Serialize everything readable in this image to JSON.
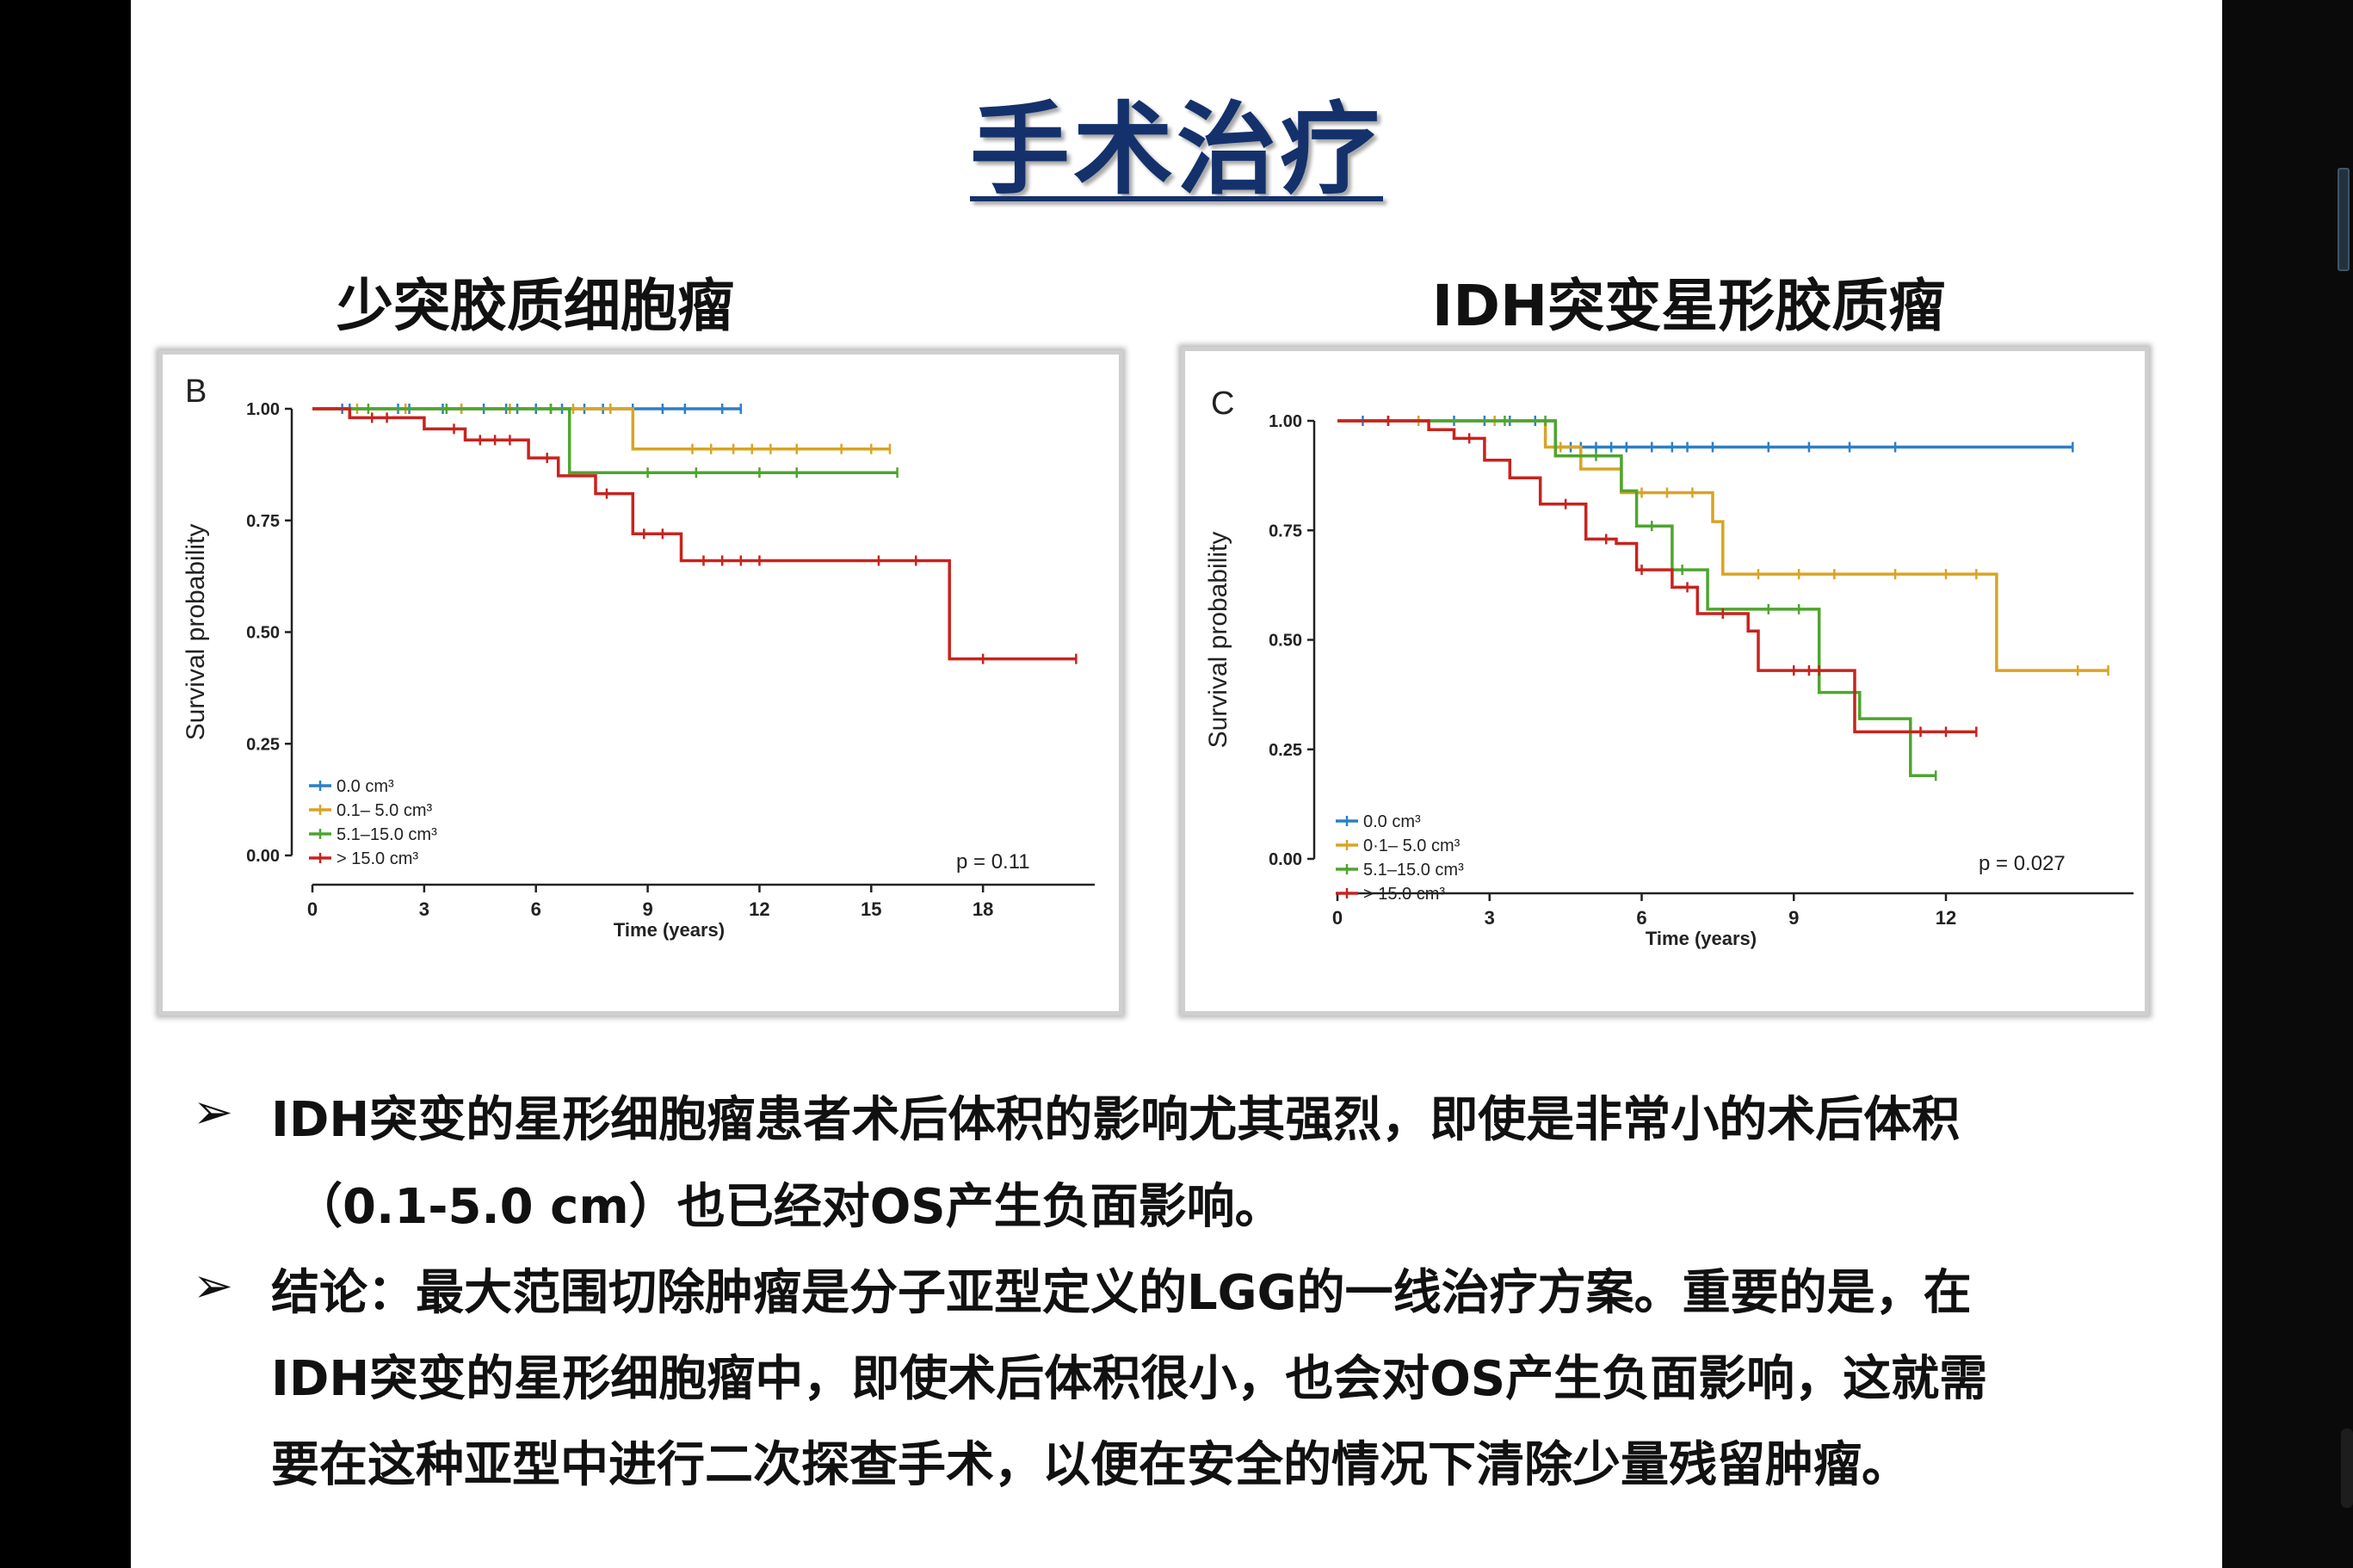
{
  "slide": {
    "title": "手术治疗",
    "left_subtitle": "少突胶质细胞瘤",
    "right_subtitle": "IDH突变星形胶质瘤",
    "bullet_symbol": "➢",
    "bullets": [
      {
        "lines": [
          "IDH突变的星形细胞瘤患者术后体积的影响尤其强烈，即使是非常小的术后体积",
          "（0.1-5.0 cm）也已经对OS产生负面影响。"
        ]
      },
      {
        "lines": [
          "结论：最大范围切除肿瘤是分子亚型定义的LGG的一线治疗方案。重要的是，在",
          "IDH突变的星形细胞瘤中，即使术后体积很小，也会对OS产生负面影响，这就需",
          "要在这种亚型中进行二次探查手术，以便在安全的情况下清除少量残留肿瘤。"
        ]
      }
    ]
  },
  "chart_data": [
    {
      "type": "line",
      "panel_label": "B",
      "xlabel": "Time (years)",
      "ylabel": "Survival probability",
      "xlim": [
        0,
        21
      ],
      "ylim": [
        0,
        1
      ],
      "x_ticks": [
        "0",
        "3",
        "6",
        "9",
        "12",
        "15",
        "18"
      ],
      "y_ticks": [
        "0.00",
        "0.25",
        "0.50",
        "0.75",
        "1.00"
      ],
      "p_value": "p = 0.11",
      "legend_position": "bottom-left",
      "series": [
        {
          "name": "0.0 cm³",
          "color": "#2b7fc9",
          "steps": [
            [
              0,
              1.0
            ],
            [
              11.5,
              1.0
            ]
          ],
          "censor": [
            0.8,
            1.0,
            2.3,
            2.6,
            3.5,
            4.0,
            4.6,
            5.2,
            5.5,
            6.0,
            6.4,
            6.7,
            7.3,
            7.8,
            8.6,
            9.4,
            10.0,
            11.0,
            11.5
          ]
        },
        {
          "name": "0.1– 5.0 cm³",
          "color": "#d9a425",
          "steps": [
            [
              0,
              1.0
            ],
            [
              8.6,
              1.0
            ],
            [
              8.6,
              0.91
            ],
            [
              15.5,
              0.91
            ]
          ],
          "censor": [
            1.2,
            2.5,
            4.0,
            5.3,
            7.0,
            8.0,
            10.2,
            10.7,
            11.3,
            11.8,
            12.3,
            13.0,
            14.2,
            15.0,
            15.5
          ]
        },
        {
          "name": "5.1–15.0 cm³",
          "color": "#4ea52e",
          "steps": [
            [
              0,
              1.0
            ],
            [
              6.9,
              1.0
            ],
            [
              6.9,
              0.857
            ],
            [
              15.7,
              0.857
            ]
          ],
          "censor": [
            1.5,
            3.6,
            6.4,
            9.0,
            10.3,
            12.0,
            13.0,
            15.7
          ]
        },
        {
          "name": "> 15.0 cm³",
          "color": "#c8231e",
          "steps": [
            [
              0,
              1.0
            ],
            [
              1.0,
              1.0
            ],
            [
              1.0,
              0.98
            ],
            [
              3.0,
              0.98
            ],
            [
              3.0,
              0.955
            ],
            [
              4.1,
              0.955
            ],
            [
              4.1,
              0.93
            ],
            [
              5.8,
              0.93
            ],
            [
              5.8,
              0.89
            ],
            [
              6.6,
              0.89
            ],
            [
              6.6,
              0.85
            ],
            [
              7.6,
              0.85
            ],
            [
              7.6,
              0.81
            ],
            [
              8.6,
              0.81
            ],
            [
              8.6,
              0.72
            ],
            [
              9.9,
              0.72
            ],
            [
              9.9,
              0.66
            ],
            [
              17.1,
              0.66
            ],
            [
              17.1,
              0.44
            ],
            [
              20.5,
              0.44
            ]
          ],
          "censor": [
            1.6,
            2.0,
            3.8,
            4.5,
            4.9,
            5.3,
            6.3,
            7.9,
            8.9,
            9.4,
            10.5,
            11.0,
            11.5,
            12.0,
            15.2,
            16.2,
            18.0,
            20.5
          ]
        }
      ]
    },
    {
      "type": "line",
      "panel_label": "C",
      "xlabel": "Time (years)",
      "ylabel": "Survival probability",
      "xlim": [
        0,
        15.7
      ],
      "ylim": [
        0,
        1
      ],
      "x_ticks": [
        "0",
        "3",
        "6",
        "9",
        "12"
      ],
      "y_ticks": [
        "0.00",
        "0.25",
        "0.50",
        "0.75",
        "1.00"
      ],
      "p_value": "p = 0.027",
      "legend_position": "bottom-left",
      "series": [
        {
          "name": "0.0 cm³",
          "color": "#2b7fc9",
          "steps": [
            [
              0,
              1.0
            ],
            [
              4.3,
              1.0
            ],
            [
              4.3,
              0.94
            ],
            [
              14.5,
              0.94
            ]
          ],
          "censor": [
            0.5,
            1.0,
            1.6,
            2.3,
            2.9,
            3.4,
            3.9,
            4.6,
            4.8,
            5.1,
            5.4,
            5.7,
            6.2,
            6.6,
            6.9,
            7.4,
            8.5,
            9.3,
            10.1,
            11.0,
            14.5
          ]
        },
        {
          "name": "0·1– 5.0 cm³",
          "color": "#d9a425",
          "steps": [
            [
              0,
              1.0
            ],
            [
              4.1,
              1.0
            ],
            [
              4.1,
              0.94
            ],
            [
              4.8,
              0.94
            ],
            [
              4.8,
              0.89
            ],
            [
              5.6,
              0.89
            ],
            [
              5.6,
              0.836
            ],
            [
              7.4,
              0.836
            ],
            [
              7.4,
              0.77
            ],
            [
              7.6,
              0.77
            ],
            [
              7.6,
              0.65
            ],
            [
              13.0,
              0.65
            ],
            [
              13.0,
              0.43
            ],
            [
              15.2,
              0.43
            ]
          ],
          "censor": [
            1.6,
            3.1,
            4.4,
            6.0,
            6.5,
            7.0,
            8.3,
            9.1,
            9.8,
            11.0,
            12.0,
            12.6,
            14.6,
            15.2
          ]
        },
        {
          "name": "5.1–15.0 cm³",
          "color": "#4ea52e",
          "steps": [
            [
              0,
              1.0
            ],
            [
              4.3,
              1.0
            ],
            [
              4.3,
              0.92
            ],
            [
              5.6,
              0.92
            ],
            [
              5.6,
              0.84
            ],
            [
              5.9,
              0.84
            ],
            [
              5.9,
              0.76
            ],
            [
              6.6,
              0.76
            ],
            [
              6.6,
              0.66
            ],
            [
              7.3,
              0.66
            ],
            [
              7.3,
              0.57
            ],
            [
              9.5,
              0.57
            ],
            [
              9.5,
              0.38
            ],
            [
              10.3,
              0.38
            ],
            [
              10.3,
              0.32
            ],
            [
              11.3,
              0.32
            ],
            [
              11.3,
              0.19
            ],
            [
              11.8,
              0.19
            ]
          ],
          "censor": [
            1.0,
            3.3,
            4.1,
            5.1,
            6.2,
            6.8,
            8.5,
            9.1,
            11.8
          ]
        },
        {
          "name": "> 15.0 cm³",
          "color": "#c8231e",
          "steps": [
            [
              0,
              1.0
            ],
            [
              1.8,
              1.0
            ],
            [
              1.8,
              0.98
            ],
            [
              2.3,
              0.98
            ],
            [
              2.3,
              0.96
            ],
            [
              2.9,
              0.96
            ],
            [
              2.9,
              0.91
            ],
            [
              3.4,
              0.91
            ],
            [
              3.4,
              0.87
            ],
            [
              4.0,
              0.87
            ],
            [
              4.0,
              0.81
            ],
            [
              4.9,
              0.81
            ],
            [
              4.9,
              0.73
            ],
            [
              5.5,
              0.73
            ],
            [
              5.5,
              0.72
            ],
            [
              5.9,
              0.72
            ],
            [
              5.9,
              0.66
            ],
            [
              6.6,
              0.66
            ],
            [
              6.6,
              0.62
            ],
            [
              7.1,
              0.62
            ],
            [
              7.1,
              0.56
            ],
            [
              8.1,
              0.56
            ],
            [
              8.1,
              0.52
            ],
            [
              8.3,
              0.52
            ],
            [
              8.3,
              0.43
            ],
            [
              10.2,
              0.43
            ],
            [
              10.2,
              0.37
            ],
            [
              10.2,
              0.37
            ],
            [
              10.2,
              0.29
            ],
            [
              12.6,
              0.29
            ]
          ],
          "censor": [
            1.0,
            2.6,
            4.5,
            5.3,
            6.0,
            6.9,
            7.6,
            9.0,
            9.3,
            9.5,
            11.5,
            12.0,
            12.6
          ]
        }
      ]
    }
  ]
}
